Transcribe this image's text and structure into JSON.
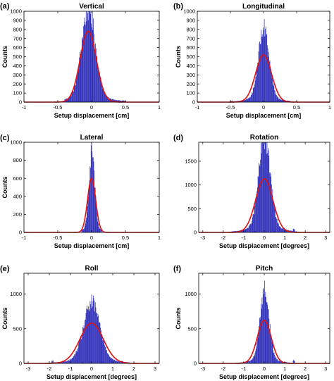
{
  "colors": {
    "bars": "#2b2bb8",
    "fit": "#e01010",
    "axes": "#000000",
    "background": "#ffffff"
  },
  "chart_data": [
    {
      "letter": "(a)",
      "title": "Vertical",
      "type": "bar",
      "xlabel": "Setup displacement [cm]",
      "ylabel": "Counts",
      "xlim": [
        -1,
        1
      ],
      "ylim": [
        0,
        1000
      ],
      "xticks": [
        -1,
        -0.5,
        0,
        0.5,
        1
      ],
      "xticklabels": [
        "-1",
        "-0.5",
        "0",
        "0.5",
        "1"
      ],
      "yticks": [
        0,
        100,
        200,
        300,
        400,
        500,
        600,
        700,
        800,
        900,
        1000
      ],
      "yticklabels": [
        "0",
        "100",
        "200",
        "300",
        "400",
        "500",
        "600",
        "700",
        "800",
        "900",
        "1000"
      ],
      "histogram": {
        "mean": -0.05,
        "sd": 0.1,
        "peak": 980,
        "range": [
          -0.4,
          0.5
        ]
      },
      "fit": {
        "type": "gaussian",
        "mean": -0.05,
        "sd": 0.12,
        "peak": 780
      }
    },
    {
      "letter": "(b)",
      "title": "Longitudinal",
      "type": "bar",
      "xlabel": "Setup displacement [cm]",
      "ylabel": "Counts",
      "xlim": [
        -1,
        1
      ],
      "ylim": [
        0,
        1000
      ],
      "xticks": [
        -1,
        -0.5,
        0,
        0.5,
        1
      ],
      "xticklabels": [
        "-1",
        "-0.5",
        "0",
        "0.5",
        "1"
      ],
      "yticks": [
        0,
        100,
        200,
        300,
        400,
        500,
        600,
        700,
        800,
        900,
        1000
      ],
      "yticklabels": [
        "0",
        "100",
        "200",
        "300",
        "400",
        "500",
        "600",
        "700",
        "800",
        "900",
        "1000"
      ],
      "histogram": {
        "mean": 0.0,
        "sd": 0.08,
        "peak": 760,
        "range": [
          -0.6,
          0.4
        ]
      },
      "fit": {
        "type": "gaussian",
        "mean": 0.0,
        "sd": 0.12,
        "peak": 520
      }
    },
    {
      "letter": "(c)",
      "title": "Lateral",
      "type": "bar",
      "xlabel": "Setup displacement [cm]",
      "ylabel": "Counts",
      "xlim": [
        -1,
        1
      ],
      "ylim": [
        0,
        1000
      ],
      "xticks": [
        -1,
        -0.5,
        0,
        0.5,
        1
      ],
      "xticklabels": [
        "-1",
        "-0.5",
        "0",
        "0.5",
        "1"
      ],
      "yticks": [
        0,
        200,
        400,
        600,
        800,
        1000
      ],
      "yticklabels": [
        "0",
        "200",
        "400",
        "600",
        "800",
        "1000"
      ],
      "histogram": {
        "mean": 0.0,
        "sd": 0.04,
        "peak": 880,
        "range": [
          -0.15,
          0.15
        ]
      },
      "fit": {
        "type": "gaussian",
        "mean": 0.0,
        "sd": 0.06,
        "peak": 600
      }
    },
    {
      "letter": "(d)",
      "title": "Rotation",
      "type": "bar",
      "xlabel": "Setup displacement [degrees]",
      "ylabel": "",
      "xlim": [
        -3.2,
        3.2
      ],
      "ylim": [
        0,
        1900
      ],
      "xticks": [
        -3,
        -2,
        -1,
        0,
        1,
        2,
        3
      ],
      "xticklabels": [
        "-3",
        "-2",
        "-1",
        "0",
        "1",
        "2",
        "3"
      ],
      "yticks": [
        0,
        500,
        1000,
        1500
      ],
      "yticklabels": [
        "0",
        "500",
        "1000",
        "1500"
      ],
      "histogram": {
        "mean": 0.0,
        "sd": 0.28,
        "peak": 1880,
        "range": [
          -1.6,
          1.6
        ]
      },
      "fit": {
        "type": "gaussian",
        "mean": 0.0,
        "sd": 0.42,
        "peak": 1130
      }
    },
    {
      "letter": "(e)",
      "title": "Roll",
      "type": "bar",
      "xlabel": "Setup displacement [degrees]",
      "ylabel": "Counts",
      "xlim": [
        -3.2,
        3.2
      ],
      "ylim": [
        0,
        1300
      ],
      "xticks": [
        -3,
        -2,
        -1,
        0,
        1,
        2,
        3
      ],
      "xticklabels": [
        "-3",
        "-2",
        "-1",
        "0",
        "1",
        "2",
        "3"
      ],
      "yticks": [
        0,
        500,
        1000
      ],
      "yticklabels": [
        "0",
        "500",
        "1000"
      ],
      "histogram": {
        "mean": 0.0,
        "sd": 0.38,
        "peak": 820,
        "range": [
          -2.2,
          1.8
        ]
      },
      "fit": {
        "type": "gaussian",
        "mean": 0.0,
        "sd": 0.55,
        "peak": 580
      }
    },
    {
      "letter": "(f)",
      "title": "Pitch",
      "type": "bar",
      "xlabel": "Setup displacement [degrees]",
      "ylabel": "Counts",
      "xlim": [
        -3.2,
        3.2
      ],
      "ylim": [
        0,
        1300
      ],
      "xticks": [
        -3,
        -2,
        -1,
        0,
        1,
        2,
        3
      ],
      "xticklabels": [
        "-3",
        "-2",
        "-1",
        "0",
        "1",
        "2",
        "3"
      ],
      "yticks": [
        0,
        500,
        1000
      ],
      "yticklabels": [
        "0",
        "500",
        "1000"
      ],
      "histogram": {
        "mean": 0.0,
        "sd": 0.22,
        "peak": 1000,
        "range": [
          -1.4,
          1.6
        ]
      },
      "fit": {
        "type": "gaussian",
        "mean": 0.0,
        "sd": 0.34,
        "peak": 620
      }
    }
  ]
}
